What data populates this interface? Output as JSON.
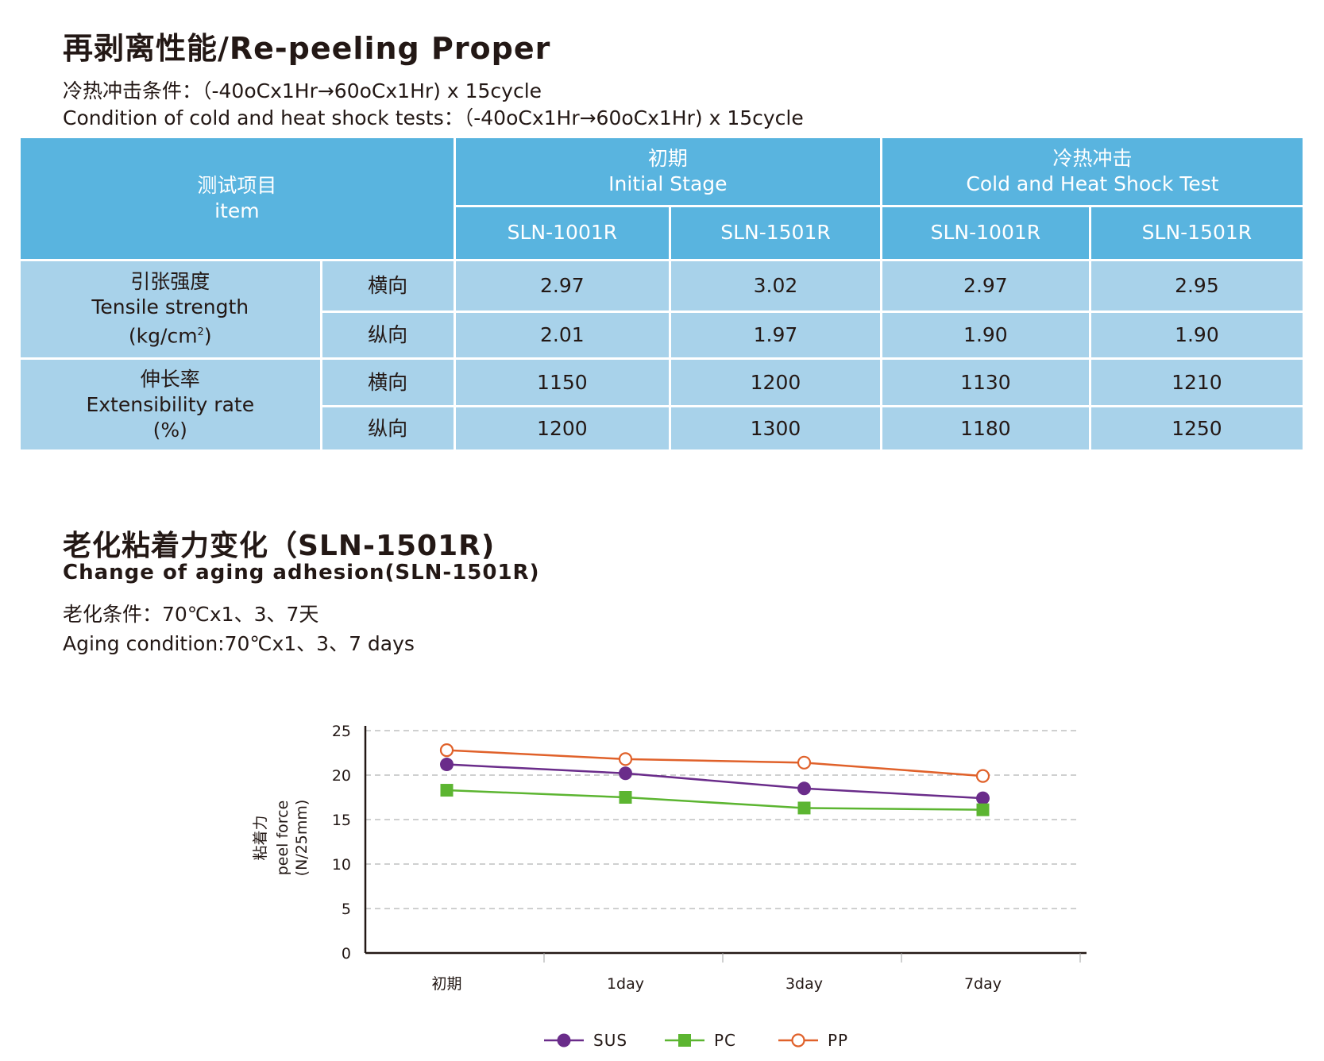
{
  "section1": {
    "title": "再剥离性能/Re-peeling Proper",
    "conditions": [
      "冷热冲击条件：（-40oCx1Hr→60oCx1Hr) x 15cycle",
      "Condition of cold and heat shock tests：（-40oCx1Hr→60oCx1Hr) x 15cycle"
    ]
  },
  "table": {
    "item_zh": "测试项目",
    "item_en": "item",
    "groups": [
      {
        "zh": "初期",
        "en": "Initial Stage"
      },
      {
        "zh": "冷热冲击",
        "en": "Cold and Heat Shock Test"
      }
    ],
    "models": [
      "SLN-1001R",
      "SLN-1501R",
      "SLN-1001R",
      "SLN-1501R"
    ],
    "rows": [
      {
        "cat_zh": "引张强度",
        "cat_en": "Tensile strength",
        "cat_unit": "(kg/cm",
        "cat_unit_sup": "2",
        "cat_unit_end": ")",
        "sub": [
          {
            "dir": "横向",
            "values": [
              "2.97",
              "3.02",
              "2.97",
              "2.95"
            ]
          },
          {
            "dir": "纵向",
            "values": [
              "2.01",
              "1.97",
              "1.90",
              "1.90"
            ]
          }
        ]
      },
      {
        "cat_zh": "伸长率",
        "cat_en": "Extensibility rate",
        "cat_unit": "(%)",
        "cat_unit_sup": "",
        "cat_unit_end": "",
        "sub": [
          {
            "dir": "横向",
            "values": [
              "1150",
              "1200",
              "1130",
              "1210"
            ]
          },
          {
            "dir": "纵向",
            "values": [
              "1200",
              "1300",
              "1180",
              "1250"
            ]
          }
        ]
      }
    ]
  },
  "section2": {
    "title_zh": "老化粘着力变化（SLN-1501R)",
    "title_en": "Change of aging adhesion(SLN-1501R)",
    "conditions": [
      "老化条件：70℃x1、3、7天",
      "Aging condition:70℃x1、3、7 days"
    ]
  },
  "chart_data": {
    "type": "line",
    "categories": [
      "初期",
      "1day",
      "3day",
      "7day"
    ],
    "series": [
      {
        "name": "SUS",
        "values": [
          21.2,
          20.2,
          18.5,
          17.4
        ],
        "color": "#6a2c8a",
        "marker": "filled-circle"
      },
      {
        "name": "PC",
        "values": [
          18.3,
          17.5,
          16.3,
          16.1
        ],
        "color": "#5cb531",
        "marker": "filled-square"
      },
      {
        "name": "PP",
        "values": [
          22.8,
          21.8,
          21.4,
          19.9
        ],
        "color": "#e0612a",
        "marker": "open-circle"
      }
    ],
    "ylim": [
      0,
      25
    ],
    "yticks": [
      0,
      5,
      10,
      15,
      20,
      25
    ],
    "ylabel_zh": "粘着力",
    "ylabel_en": "peel force",
    "ylabel_unit": "(N/25mm)",
    "grid": "horizontal dashed",
    "legend_position": "bottom"
  }
}
